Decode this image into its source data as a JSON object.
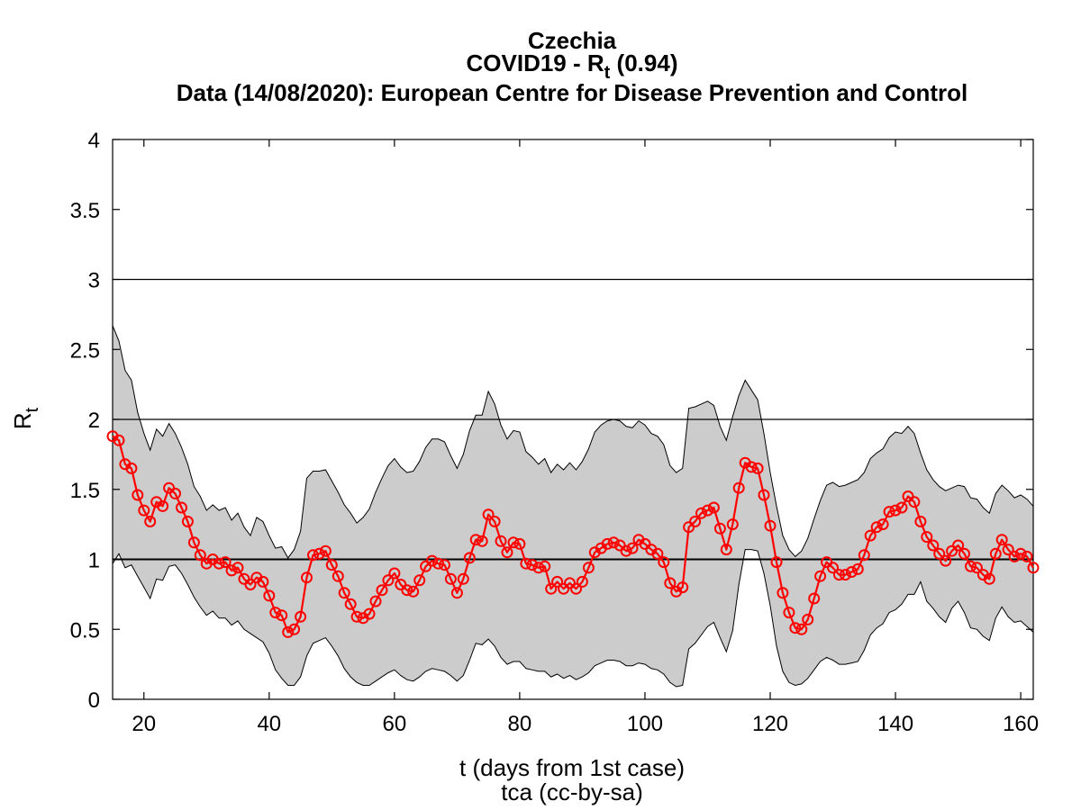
{
  "chart_data": {
    "type": "line",
    "title": "Czechia",
    "subtitle_prefix": "COVID19 - R",
    "subtitle_sub": "t",
    "subtitle_suffix": " (0.94)",
    "source_line": "Data (14/08/2020): European Centre for Disease Prevention and Control",
    "xlabel": "t (days from 1st case)",
    "ylabel_main": "R",
    "ylabel_sub": "t",
    "credit": "tca (cc-by-sa)",
    "xlim": [
      15,
      162
    ],
    "ylim": [
      0,
      4
    ],
    "xticks": [
      20,
      40,
      60,
      80,
      100,
      120,
      140,
      160
    ],
    "xtick_labels": [
      "20",
      "40",
      "60",
      "80",
      "100",
      "120",
      "140",
      "160"
    ],
    "yticks": [
      0,
      0.5,
      1,
      1.5,
      2,
      2.5,
      3,
      3.5,
      4
    ],
    "ytick_labels": [
      "0",
      "0.5",
      "1",
      "1.5",
      "2",
      "2.5",
      "3",
      "3.5",
      "4"
    ],
    "reference_lines": [
      1,
      2,
      3
    ],
    "colors": {
      "series": "#ff0000",
      "band": "#cccccc",
      "axes": "#000000"
    },
    "x": [
      15,
      16,
      17,
      18,
      19,
      20,
      21,
      22,
      23,
      24,
      25,
      26,
      27,
      28,
      29,
      30,
      31,
      32,
      33,
      34,
      35,
      36,
      37,
      38,
      39,
      40,
      41,
      42,
      43,
      44,
      45,
      46,
      47,
      48,
      49,
      50,
      51,
      52,
      53,
      54,
      55,
      56,
      57,
      58,
      59,
      60,
      61,
      62,
      63,
      64,
      65,
      66,
      67,
      68,
      69,
      70,
      71,
      72,
      73,
      74,
      75,
      76,
      77,
      78,
      79,
      80,
      81,
      82,
      83,
      84,
      85,
      86,
      87,
      88,
      89,
      90,
      91,
      92,
      93,
      94,
      95,
      96,
      97,
      98,
      99,
      100,
      101,
      102,
      103,
      104,
      105,
      106,
      107,
      108,
      109,
      110,
      111,
      112,
      113,
      114,
      115,
      116,
      117,
      118,
      119,
      120,
      121,
      122,
      123,
      124,
      125,
      126,
      127,
      128,
      129,
      130,
      131,
      132,
      133,
      134,
      135,
      136,
      137,
      138,
      139,
      140,
      141,
      142,
      143,
      144,
      145,
      146,
      147,
      148,
      149,
      150,
      151,
      152,
      153,
      154,
      155,
      156,
      157,
      158,
      159,
      160,
      161,
      162
    ],
    "series": [
      {
        "values": [
          1.88,
          1.85,
          1.68,
          1.65,
          1.46,
          1.35,
          1.27,
          1.41,
          1.38,
          1.51,
          1.47,
          1.37,
          1.27,
          1.12,
          1.03,
          0.97,
          1.0,
          0.97,
          0.98,
          0.92,
          0.94,
          0.86,
          0.82,
          0.87,
          0.84,
          0.74,
          0.62,
          0.6,
          0.48,
          0.5,
          0.59,
          0.87,
          1.03,
          1.04,
          1.06,
          0.96,
          0.88,
          0.76,
          0.68,
          0.59,
          0.58,
          0.61,
          0.7,
          0.78,
          0.85,
          0.9,
          0.82,
          0.78,
          0.77,
          0.85,
          0.95,
          0.99,
          0.97,
          0.96,
          0.86,
          0.76,
          0.86,
          1.01,
          1.14,
          1.13,
          1.32,
          1.27,
          1.13,
          1.05,
          1.12,
          1.11,
          0.97,
          0.96,
          0.94,
          0.95,
          0.79,
          0.84,
          0.79,
          0.83,
          0.79,
          0.84,
          0.94,
          1.05,
          1.08,
          1.11,
          1.12,
          1.1,
          1.06,
          1.08,
          1.14,
          1.11,
          1.07,
          1.04,
          0.98,
          0.83,
          0.77,
          0.8,
          1.23,
          1.27,
          1.33,
          1.35,
          1.37,
          1.22,
          1.07,
          1.25,
          1.51,
          1.69,
          1.66,
          1.65,
          1.46,
          1.24,
          0.98,
          0.76,
          0.62,
          0.51,
          0.5,
          0.57,
          0.72,
          0.88,
          0.98,
          0.94,
          0.89,
          0.89,
          0.91,
          0.93,
          1.03,
          1.17,
          1.23,
          1.25,
          1.34,
          1.35,
          1.37,
          1.45,
          1.41,
          1.27,
          1.16,
          1.1,
          1.04,
          0.99,
          1.06,
          1.1,
          1.04,
          0.95,
          0.94,
          0.89,
          0.86,
          1.04,
          1.14,
          1.07,
          1.02,
          1.04,
          1.02,
          0.94
        ]
      }
    ],
    "band_upper": [
      2.67,
      2.56,
      2.35,
      2.28,
      2.05,
      1.9,
      1.78,
      1.93,
      1.88,
      1.97,
      1.9,
      1.8,
      1.68,
      1.52,
      1.45,
      1.35,
      1.39,
      1.35,
      1.37,
      1.28,
      1.33,
      1.23,
      1.17,
      1.3,
      1.27,
      1.17,
      1.08,
      1.09,
      1.01,
      1.07,
      1.2,
      1.58,
      1.63,
      1.63,
      1.64,
      1.56,
      1.48,
      1.39,
      1.33,
      1.26,
      1.3,
      1.36,
      1.48,
      1.58,
      1.67,
      1.72,
      1.66,
      1.62,
      1.63,
      1.7,
      1.8,
      1.86,
      1.86,
      1.84,
      1.74,
      1.65,
      1.75,
      1.92,
      2.03,
      2.03,
      2.2,
      2.11,
      1.96,
      1.86,
      1.92,
      1.91,
      1.77,
      1.73,
      1.68,
      1.72,
      1.62,
      1.68,
      1.64,
      1.69,
      1.64,
      1.7,
      1.79,
      1.91,
      1.96,
      1.99,
      2.0,
      1.99,
      1.95,
      1.94,
      1.99,
      1.96,
      1.9,
      1.88,
      1.82,
      1.67,
      1.62,
      1.65,
      2.08,
      2.09,
      2.11,
      2.13,
      2.1,
      1.95,
      1.85,
      2.02,
      2.17,
      2.28,
      2.21,
      2.14,
      1.9,
      1.62,
      1.38,
      1.17,
      1.07,
      1.02,
      1.06,
      1.15,
      1.29,
      1.42,
      1.53,
      1.55,
      1.52,
      1.53,
      1.55,
      1.57,
      1.62,
      1.72,
      1.76,
      1.79,
      1.87,
      1.91,
      1.9,
      1.95,
      1.9,
      1.76,
      1.64,
      1.57,
      1.52,
      1.49,
      1.51,
      1.53,
      1.52,
      1.44,
      1.43,
      1.37,
      1.33,
      1.47,
      1.53,
      1.49,
      1.44,
      1.46,
      1.43,
      1.38
    ],
    "band_lower": [
      0.97,
      1.04,
      0.94,
      0.96,
      0.88,
      0.8,
      0.72,
      0.86,
      0.85,
      0.95,
      0.96,
      0.9,
      0.82,
      0.73,
      0.66,
      0.6,
      0.63,
      0.58,
      0.58,
      0.53,
      0.56,
      0.5,
      0.47,
      0.44,
      0.41,
      0.33,
      0.21,
      0.15,
      0.1,
      0.1,
      0.16,
      0.31,
      0.4,
      0.42,
      0.44,
      0.38,
      0.31,
      0.22,
      0.16,
      0.12,
      0.1,
      0.1,
      0.13,
      0.16,
      0.19,
      0.21,
      0.17,
      0.14,
      0.13,
      0.16,
      0.2,
      0.22,
      0.21,
      0.2,
      0.17,
      0.13,
      0.17,
      0.28,
      0.4,
      0.39,
      0.43,
      0.38,
      0.3,
      0.25,
      0.27,
      0.27,
      0.22,
      0.21,
      0.2,
      0.2,
      0.16,
      0.18,
      0.15,
      0.17,
      0.14,
      0.16,
      0.19,
      0.24,
      0.26,
      0.28,
      0.28,
      0.27,
      0.24,
      0.24,
      0.26,
      0.25,
      0.22,
      0.21,
      0.18,
      0.12,
      0.09,
      0.1,
      0.36,
      0.4,
      0.46,
      0.52,
      0.55,
      0.44,
      0.34,
      0.49,
      0.82,
      1.07,
      1.07,
      1.06,
      0.9,
      0.67,
      0.38,
      0.2,
      0.12,
      0.1,
      0.11,
      0.15,
      0.21,
      0.27,
      0.3,
      0.28,
      0.25,
      0.25,
      0.26,
      0.27,
      0.35,
      0.46,
      0.51,
      0.54,
      0.62,
      0.64,
      0.68,
      0.75,
      0.75,
      0.84,
      0.7,
      0.65,
      0.59,
      0.55,
      0.65,
      0.7,
      0.62,
      0.51,
      0.5,
      0.45,
      0.42,
      0.58,
      0.66,
      0.59,
      0.55,
      0.56,
      0.52,
      0.48
    ]
  }
}
